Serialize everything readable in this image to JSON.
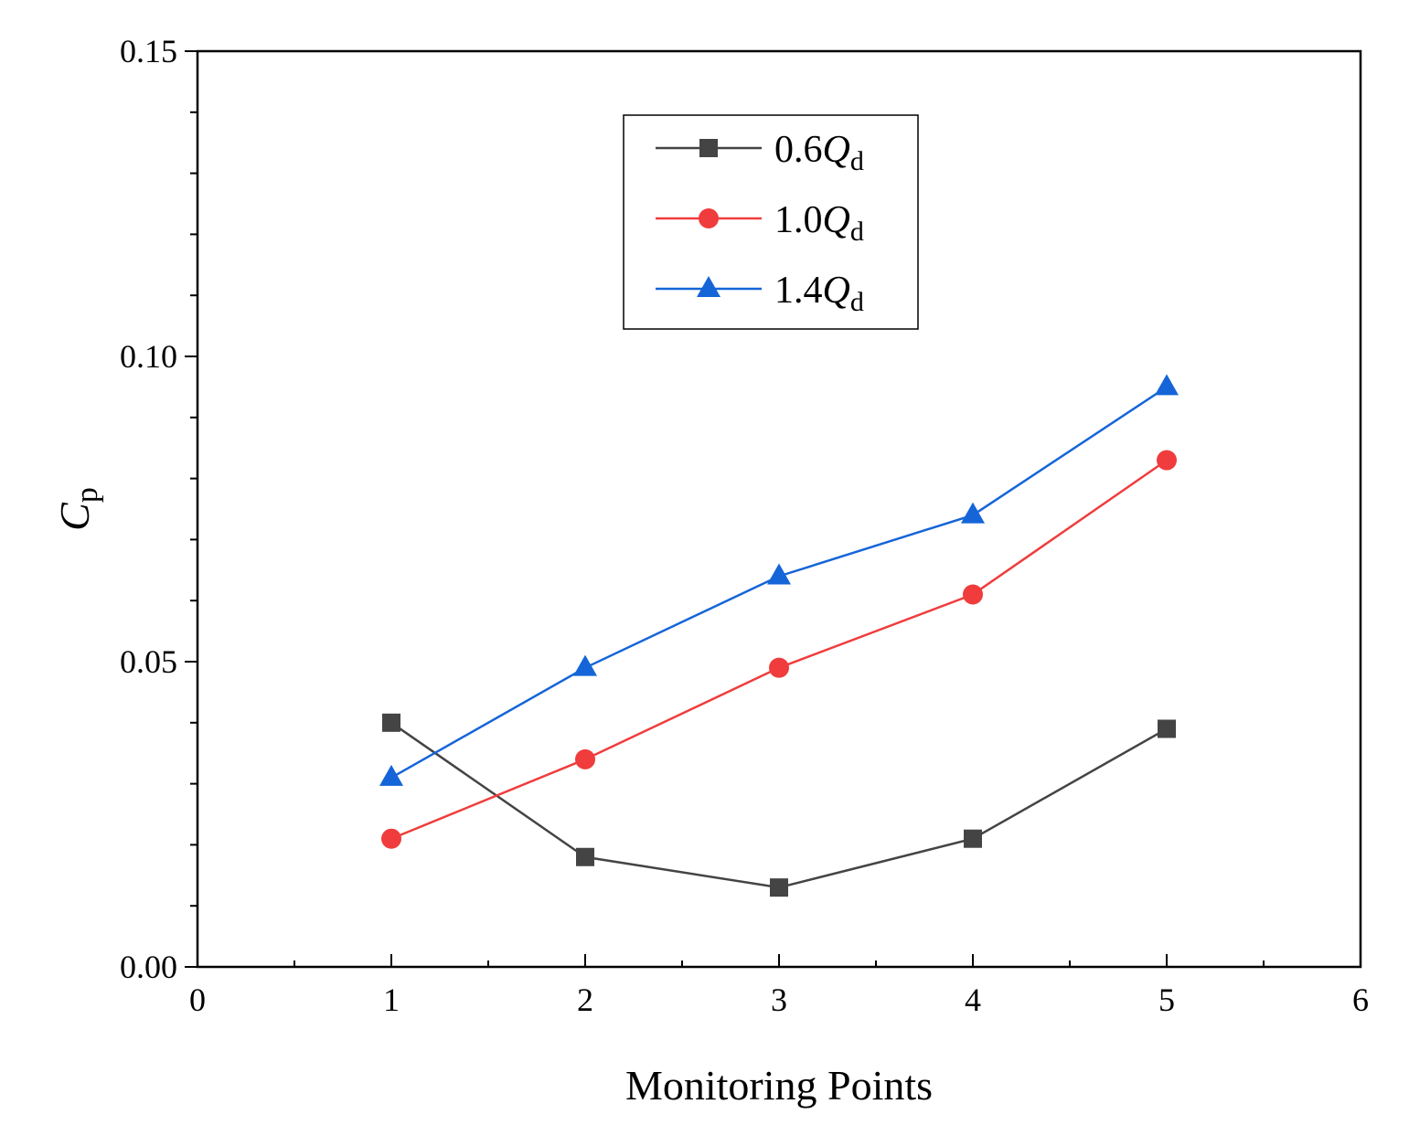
{
  "chart_data": {
    "type": "line",
    "title": "",
    "xlabel": "Monitoring Points",
    "ylabel": {
      "symbol": "C",
      "subscript": "p"
    },
    "xlim": [
      0,
      6
    ],
    "ylim": [
      0,
      0.15
    ],
    "xticks": [
      0,
      1,
      2,
      3,
      4,
      5,
      6
    ],
    "xtick_labels": [
      "0",
      "1",
      "2",
      "3",
      "4",
      "5",
      "6"
    ],
    "yticks": [
      0,
      0.05,
      0.1,
      0.15
    ],
    "ytick_labels": [
      "0.00",
      "0.05",
      "0.10",
      "0.15"
    ],
    "grid": false,
    "legend_position": "top-center",
    "x": [
      1,
      2,
      3,
      4,
      5
    ],
    "series": [
      {
        "name": "0.6Qd",
        "coef": "0.6",
        "symbol": "Q",
        "subscript": "d",
        "marker": "square",
        "color": "#444444",
        "values": [
          0.04,
          0.018,
          0.013,
          0.021,
          0.039
        ]
      },
      {
        "name": "1.0Qd",
        "coef": "1.0",
        "symbol": "Q",
        "subscript": "d",
        "marker": "circle",
        "color": "#f03c3c",
        "values": [
          0.021,
          0.034,
          0.049,
          0.061,
          0.083
        ]
      },
      {
        "name": "1.4Qd",
        "coef": "1.4",
        "symbol": "Q",
        "subscript": "d",
        "marker": "triangle",
        "color": "#1565d8",
        "values": [
          0.031,
          0.049,
          0.064,
          0.074,
          0.095
        ]
      }
    ]
  }
}
